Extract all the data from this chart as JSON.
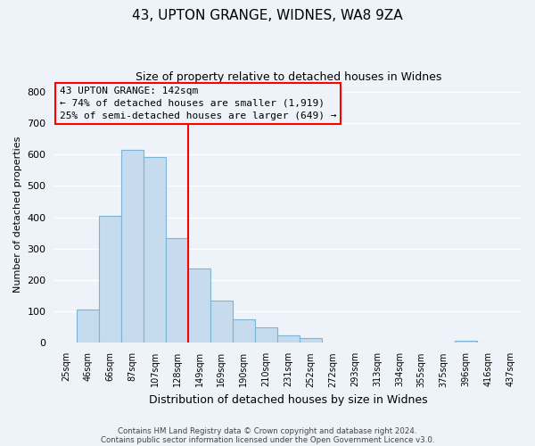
{
  "title": "43, UPTON GRANGE, WIDNES, WA8 9ZA",
  "subtitle": "Size of property relative to detached houses in Widnes",
  "xlabel": "Distribution of detached houses by size in Widnes",
  "ylabel": "Number of detached properties",
  "bar_labels": [
    "25sqm",
    "46sqm",
    "66sqm",
    "87sqm",
    "107sqm",
    "128sqm",
    "149sqm",
    "169sqm",
    "190sqm",
    "210sqm",
    "231sqm",
    "252sqm",
    "272sqm",
    "293sqm",
    "313sqm",
    "334sqm",
    "355sqm",
    "375sqm",
    "396sqm",
    "416sqm",
    "437sqm"
  ],
  "bar_values": [
    0,
    106,
    403,
    614,
    591,
    333,
    236,
    136,
    76,
    49,
    24,
    15,
    0,
    0,
    0,
    0,
    0,
    0,
    8,
    0,
    0
  ],
  "bar_color": "#c6dcee",
  "bar_edge_color": "#7bb4d4",
  "vline_x": 6.0,
  "vline_color": "red",
  "ylim": [
    0,
    820
  ],
  "yticks": [
    0,
    100,
    200,
    300,
    400,
    500,
    600,
    700,
    800
  ],
  "annotation_title": "43 UPTON GRANGE: 142sqm",
  "annotation_line1": "← 74% of detached houses are smaller (1,919)",
  "annotation_line2": "25% of semi-detached houses are larger (649) →",
  "annotation_box_color": "red",
  "footer_line1": "Contains HM Land Registry data © Crown copyright and database right 2024.",
  "footer_line2": "Contains public sector information licensed under the Open Government Licence v3.0.",
  "background_color": "#eef2f9",
  "plot_bg_color": "#eef2f9",
  "grid_color": "#ffffff"
}
